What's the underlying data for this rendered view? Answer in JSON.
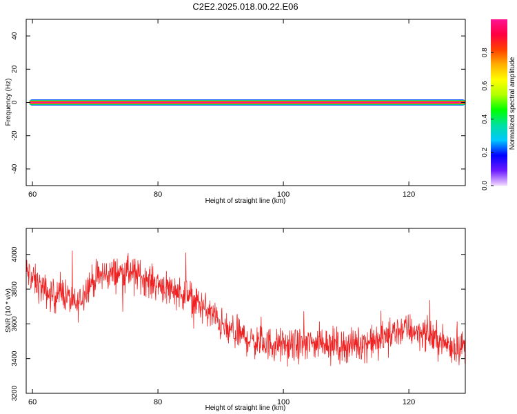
{
  "figure": {
    "title": "C2E2.2025.018.00.22.E06"
  },
  "chart_data": [
    {
      "type": "heatmap",
      "xlabel": "Height of straight line (km)",
      "ylabel": "Frequency (Hz)",
      "xlim": [
        59,
        129
      ],
      "ylim": [
        -50,
        50
      ],
      "xticks": [
        60,
        80,
        100,
        120
      ],
      "yticks": [
        -40,
        -20,
        0,
        20,
        40
      ],
      "grid": false,
      "description_band": {
        "frequency_hz": 0,
        "x_start_km": 59.5,
        "x_end_km": 129,
        "peak_amplitude": 1.0
      },
      "colorbar": {
        "label": "Normalized spectral amplitude",
        "range": [
          0.0,
          1.0
        ],
        "ticks": [
          0.0,
          0.2,
          0.4,
          0.6,
          0.8
        ],
        "colors": [
          "#f4d8ff",
          "#6a1aff",
          "#0000ff",
          "#00c8ff",
          "#00e0a0",
          "#00ff00",
          "#b0ff00",
          "#ffff00",
          "#ffb000",
          "#ff4000",
          "#ff0040",
          "#ff1493"
        ]
      }
    },
    {
      "type": "line",
      "xlabel": "Height of straight line (km)",
      "ylabel": "SNR (10 * v/v)",
      "xlim": [
        59,
        129
      ],
      "ylim": [
        3200,
        4150
      ],
      "xticks": [
        60,
        80,
        100,
        120
      ],
      "yticks": [
        3200,
        3400,
        3600,
        3800,
        4000
      ],
      "grid": false,
      "series": [
        {
          "color": "#ee2222",
          "x": [
            59,
            61,
            63,
            65,
            67,
            69,
            71,
            73,
            75,
            77,
            79,
            81,
            83,
            85,
            87,
            89,
            91,
            93,
            95,
            97,
            99,
            101,
            103,
            105,
            107,
            109,
            111,
            113,
            115,
            117,
            119,
            121,
            123,
            125,
            127,
            129
          ],
          "values": [
            3900,
            3820,
            3760,
            3780,
            3700,
            3830,
            3880,
            3890,
            3900,
            3880,
            3840,
            3820,
            3790,
            3760,
            3700,
            3640,
            3560,
            3540,
            3500,
            3490,
            3480,
            3470,
            3480,
            3490,
            3500,
            3470,
            3480,
            3490,
            3500,
            3540,
            3570,
            3560,
            3540,
            3500,
            3470,
            3470
          ],
          "noise_range": 140
        }
      ]
    }
  ]
}
